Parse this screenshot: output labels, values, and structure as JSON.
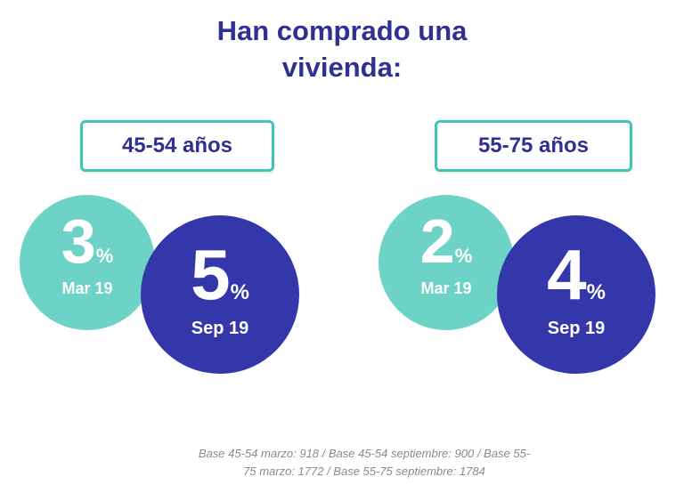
{
  "title": {
    "line1": "Han comprado una",
    "line2": "vivienda:"
  },
  "colors": {
    "title": "#2e3192",
    "mar_bubble": "#6dd3c6",
    "sep_bubble": "#3337a9",
    "label_border": "#3fc4b7",
    "footnote": "#8a8a8a"
  },
  "chart_data": {
    "type": "bubble",
    "unit": "%",
    "groups": [
      {
        "label": "45-54 años",
        "points": [
          {
            "period": "Mar 19",
            "value": 3
          },
          {
            "period": "Sep 19",
            "value": 5
          }
        ]
      },
      {
        "label": "55-75 años",
        "points": [
          {
            "period": "Mar 19",
            "value": 2
          },
          {
            "period": "Sep 19",
            "value": 4
          }
        ]
      }
    ]
  },
  "footnote": {
    "line1": "Base 45-54 marzo: 918 / Base 45-54 septiembre: 900 / Base 55-",
    "line2": "75 marzo: 1772 / Base 55-75 septiembre: 1784"
  }
}
